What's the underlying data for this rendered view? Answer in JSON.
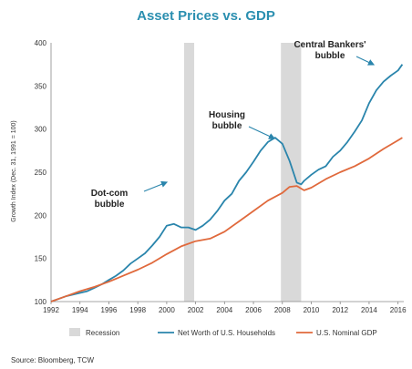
{
  "chart_data": {
    "type": "line",
    "title": "Asset Prices vs. GDP",
    "ylabel": "Growth Index (Dec. 31, 1991 = 100)",
    "xlabel": "",
    "xlim": [
      1992,
      2016.4
    ],
    "ylim": [
      100,
      400
    ],
    "x_ticks": [
      "1992",
      "1994",
      "1996",
      "1998",
      "2000",
      "2002",
      "2004",
      "2006",
      "2008",
      "2010",
      "2012",
      "2014",
      "2016"
    ],
    "y_ticks": [
      "100",
      "150",
      "200",
      "250",
      "300",
      "350",
      "400"
    ],
    "recessions": [
      [
        2001.2,
        2001.9
      ],
      [
        2007.9,
        2009.3
      ]
    ],
    "series": [
      {
        "name": "Net Worth of U.S. Households",
        "color": "#2a85ac",
        "x": [
          1992,
          1992.5,
          1993,
          1993.5,
          1994,
          1994.5,
          1995,
          1995.5,
          1996,
          1996.5,
          1997,
          1997.5,
          1998,
          1998.5,
          1999,
          1999.5,
          2000,
          2000.5,
          2001,
          2001.5,
          2002,
          2002.5,
          2003,
          2003.5,
          2004,
          2004.5,
          2005,
          2005.5,
          2006,
          2006.5,
          2007,
          2007.5,
          2008,
          2008.5,
          2009,
          2009.3,
          2009.5,
          2010,
          2010.5,
          2011,
          2011.5,
          2012,
          2012.5,
          2013,
          2013.5,
          2014,
          2014.5,
          2015,
          2015.5,
          2016,
          2016.3
        ],
        "values": [
          100,
          103,
          106,
          108,
          110,
          112,
          116,
          120,
          125,
          130,
          136,
          144,
          150,
          156,
          165,
          175,
          188,
          190,
          186,
          186,
          183,
          188,
          195,
          205,
          217,
          225,
          240,
          250,
          262,
          275,
          285,
          290,
          283,
          263,
          238,
          236,
          240,
          247,
          253,
          257,
          268,
          275,
          285,
          297,
          310,
          330,
          345,
          355,
          362,
          368,
          375
        ]
      },
      {
        "name": "U.S. Nominal GDP",
        "color": "#e0693c",
        "x": [
          1992,
          1993,
          1994,
          1995,
          1996,
          1997,
          1998,
          1999,
          2000,
          2001,
          2002,
          2003,
          2004,
          2005,
          2006,
          2007,
          2008,
          2008.5,
          2009,
          2009.5,
          2010,
          2011,
          2012,
          2013,
          2014,
          2015,
          2016,
          2016.3
        ],
        "values": [
          100,
          106,
          112,
          117,
          123,
          130,
          137,
          145,
          155,
          164,
          170,
          173,
          181,
          193,
          205,
          217,
          226,
          233,
          234,
          229,
          232,
          242,
          250,
          257,
          266,
          277,
          287,
          290
        ]
      }
    ],
    "annotations": [
      {
        "lines": [
          "Dot-com",
          "bubble"
        ],
        "x": 2000.0,
        "y": 190
      },
      {
        "lines": [
          "Housing",
          "bubble"
        ],
        "x": 2007.6,
        "y": 290
      },
      {
        "lines": [
          "Central Bankers'",
          "bubble"
        ],
        "x": 2015.2,
        "y": 372
      }
    ],
    "legend": {
      "position": "bottom",
      "items": [
        {
          "label": "Recession",
          "kind": "box",
          "color": "#d9d9d9"
        },
        {
          "label": "Net Worth of U.S. Households",
          "kind": "line",
          "color": "#2a85ac"
        },
        {
          "label": "U.S. Nominal GDP",
          "kind": "line",
          "color": "#e0693c"
        }
      ]
    },
    "grid": false
  },
  "source": "Source: Bloomberg, TCW"
}
